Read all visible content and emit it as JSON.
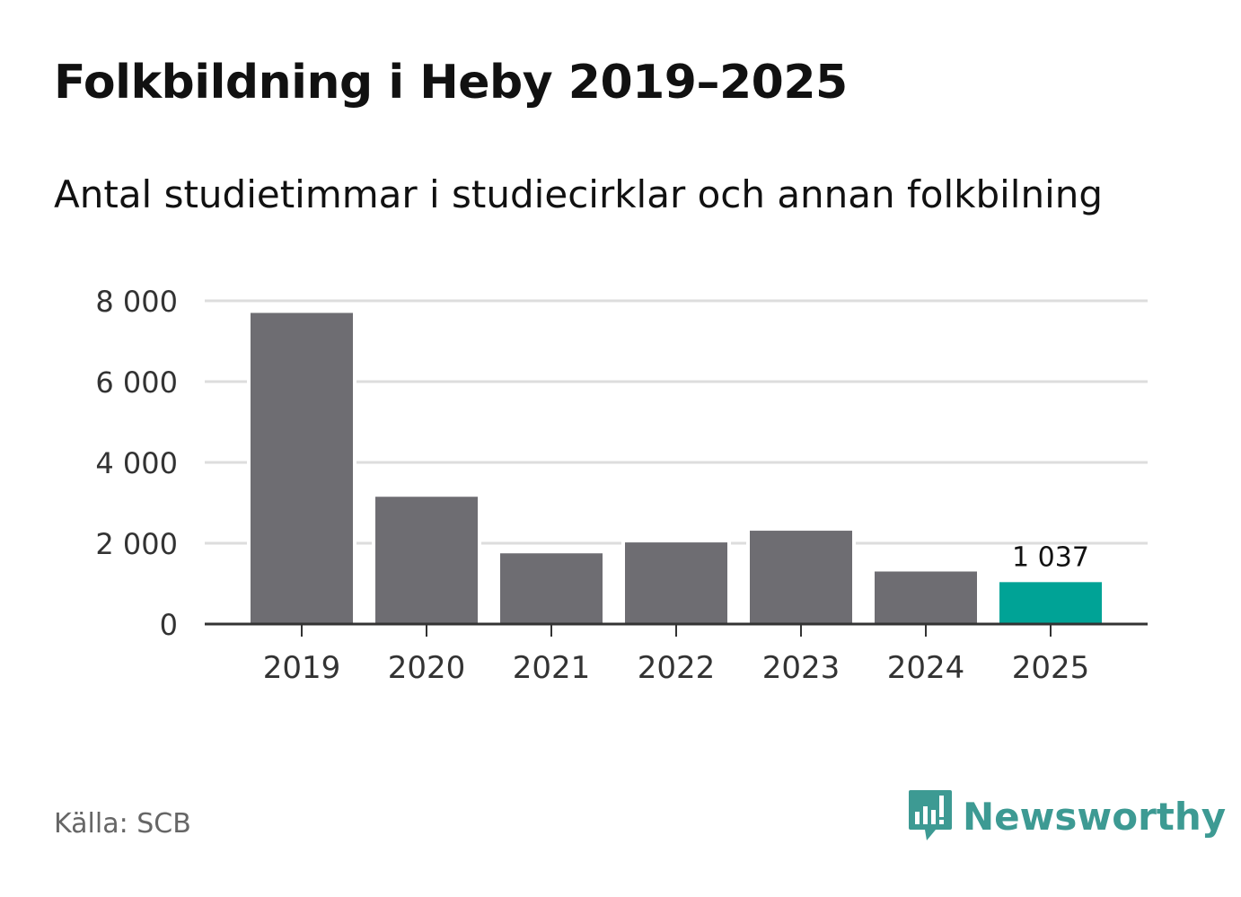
{
  "header": {
    "title": "Folkbildning i Heby 2019–2025",
    "subtitle": "Antal studietimmar i studiecirklar och annan folkbilning"
  },
  "footer": {
    "source": "Källa: SCB",
    "brand": "Newsworthy",
    "brand_icon": "newsworthy-logo-icon"
  },
  "colors": {
    "bar": "#6e6d72",
    "highlight": "#00a396",
    "grid": "#dddddd",
    "axis": "#333333",
    "brand": "#3d9a93"
  },
  "chart_data": {
    "type": "bar",
    "categories": [
      "2019",
      "2020",
      "2021",
      "2022",
      "2023",
      "2024",
      "2025"
    ],
    "values": [
      7700,
      3150,
      1750,
      2020,
      2310,
      1300,
      1037
    ],
    "highlight_index": 6,
    "highlight_label": "1 037",
    "ylim": [
      0,
      8000
    ],
    "yticks": [
      0,
      2000,
      4000,
      6000,
      8000
    ],
    "ytick_labels": [
      "0",
      "2 000",
      "4 000",
      "6 000",
      "8 000"
    ],
    "grid": true,
    "legend": "none"
  }
}
